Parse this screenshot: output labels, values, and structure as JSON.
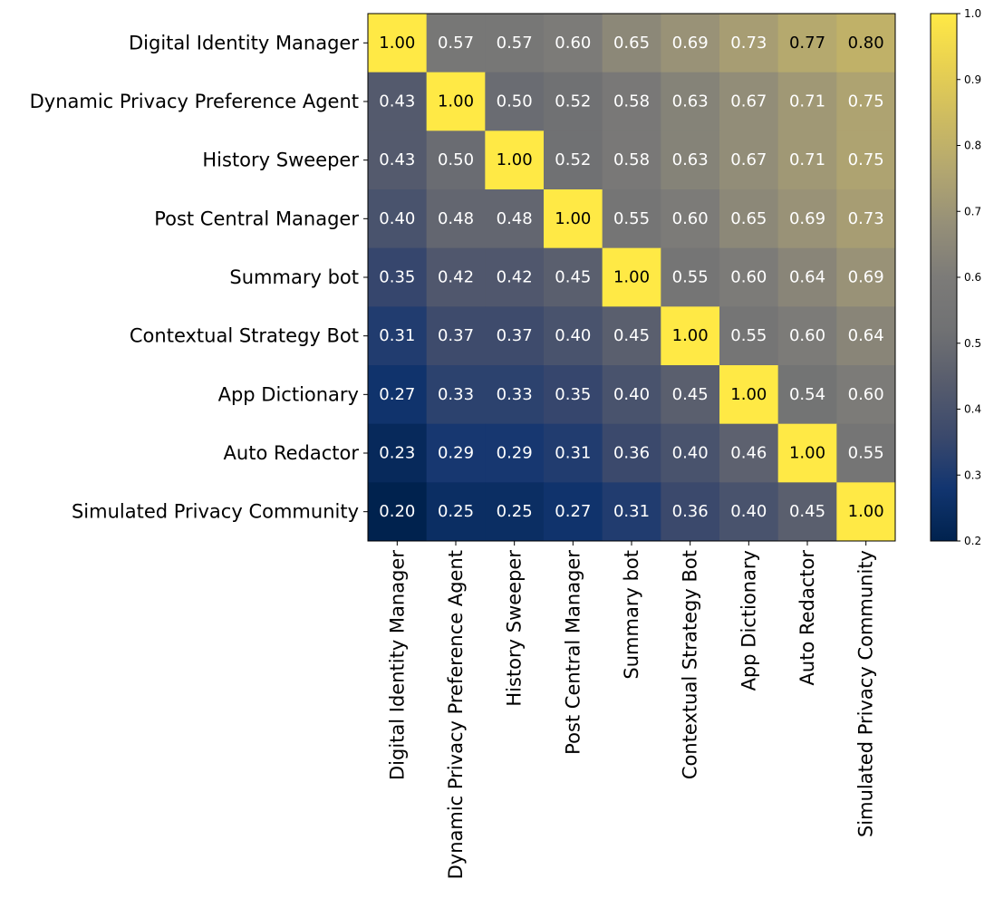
{
  "chart_data": {
    "type": "heatmap",
    "title": "",
    "xlabel": "",
    "ylabel": "",
    "colormap": "cividis",
    "value_range": [
      0.2,
      1.0
    ],
    "row_labels": [
      "Digital Identity Manager",
      "Dynamic Privacy Preference Agent",
      "History Sweeper",
      "Post Central Manager",
      "Summary bot",
      "Contextual Strategy Bot",
      "App Dictionary",
      "Auto Redactor",
      "Simulated Privacy Community"
    ],
    "col_labels": [
      "Digital Identity Manager",
      "Dynamic Privacy Preference Agent",
      "History Sweeper",
      "Post Central Manager",
      "Summary bot",
      "Contextual Strategy Bot",
      "App Dictionary",
      "Auto Redactor",
      "Simulated Privacy Community"
    ],
    "values": [
      [
        1.0,
        0.57,
        0.57,
        0.6,
        0.65,
        0.69,
        0.73,
        0.77,
        0.8
      ],
      [
        0.43,
        1.0,
        0.5,
        0.52,
        0.58,
        0.63,
        0.67,
        0.71,
        0.75
      ],
      [
        0.43,
        0.5,
        1.0,
        0.52,
        0.58,
        0.63,
        0.67,
        0.71,
        0.75
      ],
      [
        0.4,
        0.48,
        0.48,
        1.0,
        0.55,
        0.6,
        0.65,
        0.69,
        0.73
      ],
      [
        0.35,
        0.42,
        0.42,
        0.45,
        1.0,
        0.55,
        0.6,
        0.64,
        0.69
      ],
      [
        0.31,
        0.37,
        0.37,
        0.4,
        0.45,
        1.0,
        0.55,
        0.6,
        0.64
      ],
      [
        0.27,
        0.33,
        0.33,
        0.35,
        0.4,
        0.45,
        1.0,
        0.54,
        0.6
      ],
      [
        0.23,
        0.29,
        0.29,
        0.31,
        0.36,
        0.4,
        0.46,
        1.0,
        0.55
      ],
      [
        0.2,
        0.25,
        0.25,
        0.27,
        0.31,
        0.36,
        0.4,
        0.45,
        1.0
      ]
    ],
    "colorbar_ticks": [
      0.2,
      0.3,
      0.4,
      0.5,
      0.6,
      0.7,
      0.8,
      0.9,
      1.0
    ],
    "colorbar_tick_labels": [
      "0.2",
      "0.3",
      "0.4",
      "0.5",
      "0.6",
      "0.7",
      "0.8",
      "0.9",
      "1.0"
    ]
  }
}
